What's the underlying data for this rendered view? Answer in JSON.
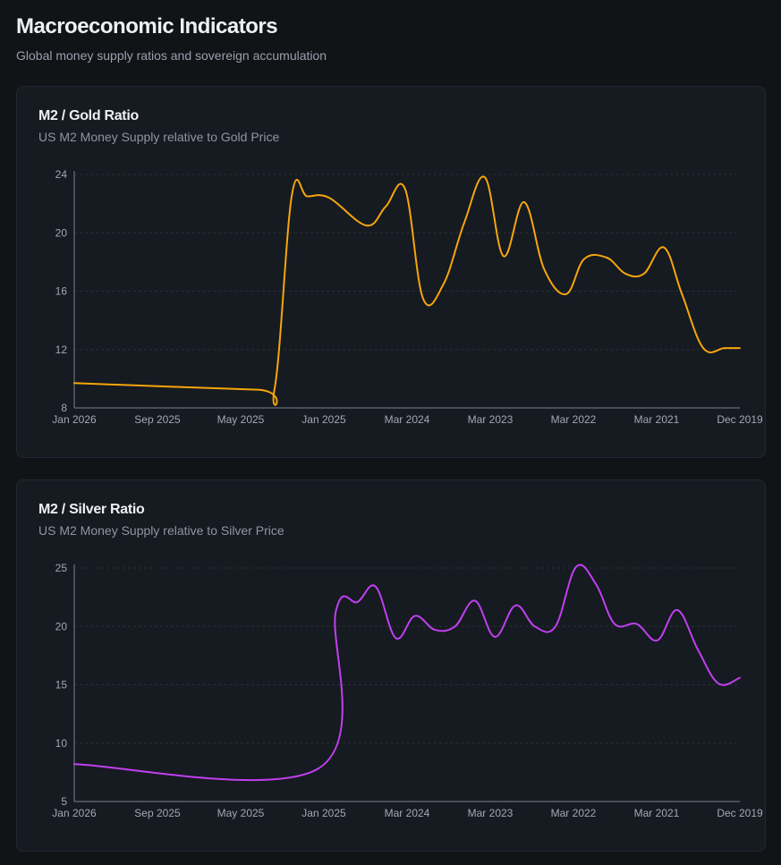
{
  "header": {
    "title": "Macroeconomic Indicators",
    "subtitle": "Global money supply ratios and sovereign accumulation"
  },
  "chart_data": [
    {
      "type": "line",
      "title": "M2 / Gold Ratio",
      "subtitle": "US M2 Money Supply relative to Gold Price",
      "color": "#f5a60b",
      "xlabel": "",
      "ylabel": "",
      "ylim": [
        8,
        24
      ],
      "yticks": [
        8,
        12,
        16,
        20,
        24
      ],
      "xticks": [
        "Jan 2026",
        "Sep 2025",
        "May 2025",
        "Jan 2025",
        "Mar 2024",
        "Mar 2023",
        "Mar 2022",
        "Mar 2021",
        "Dec 2019"
      ],
      "grid": true,
      "x_index": [
        0,
        27.4,
        30.1,
        32.7,
        35.0,
        38.3,
        43.9,
        46.8,
        49.7,
        52.4,
        55.5,
        58.6,
        61.7,
        64.5,
        67.6,
        70.6,
        73.9,
        76.6,
        80.0,
        82.8,
        85.6,
        88.6,
        91.3,
        94.5,
        97.7,
        100
      ],
      "values": [
        9.7,
        9.25,
        9.3,
        22.6,
        22.5,
        22.4,
        20.5,
        21.8,
        23.0,
        15.5,
        16.5,
        20.7,
        23.8,
        18.4,
        22.1,
        17.5,
        15.8,
        18.2,
        18.3,
        17.2,
        17.2,
        19.0,
        15.8,
        12.1,
        12.1,
        12.1
      ]
    },
    {
      "type": "line",
      "title": "M2 / Silver Ratio",
      "subtitle": "US M2 Money Supply relative to Silver Price",
      "color": "#c040f0",
      "xlabel": "",
      "ylabel": "",
      "ylim": [
        5,
        25
      ],
      "yticks": [
        5,
        10,
        15,
        20,
        25
      ],
      "xticks": [
        "Jan 2026",
        "Sep 2025",
        "May 2025",
        "Jan 2025",
        "Mar 2024",
        "Mar 2023",
        "Mar 2022",
        "Mar 2021",
        "Dec 2019"
      ],
      "grid": true,
      "x_index": [
        0,
        36.6,
        39.3,
        42.6,
        45.3,
        48.3,
        51.2,
        54.2,
        57.2,
        60.2,
        63.2,
        66.3,
        69.2,
        72.3,
        75.4,
        78.4,
        81.2,
        84.5,
        87.6,
        90.6,
        93.7,
        96.8,
        100
      ],
      "values": [
        8.2,
        7.8,
        21.3,
        22.1,
        23.4,
        19.0,
        20.9,
        19.7,
        20.0,
        22.2,
        19.1,
        21.8,
        20.0,
        20.0,
        25.1,
        23.6,
        20.2,
        20.2,
        18.8,
        21.4,
        18.0,
        15.1,
        15.6
      ]
    }
  ]
}
